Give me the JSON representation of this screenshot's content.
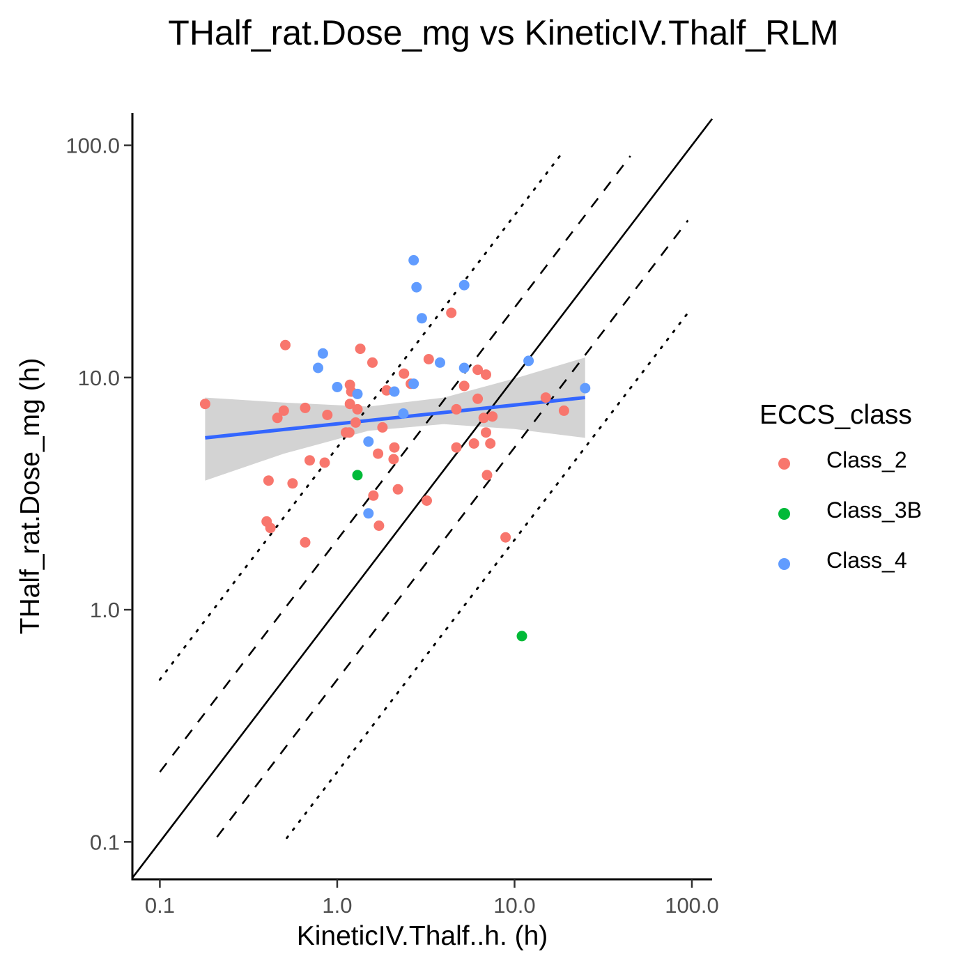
{
  "chart_data": {
    "type": "scatter",
    "title": "THalf_rat.Dose_mg vs KineticIV.Thalf_RLM",
    "xlabel": "KineticIV.Thalf..h. (h)",
    "ylabel": "THalf_rat.Dose_mg (h)",
    "x_scale": "log10",
    "y_scale": "log10",
    "xlim": [
      0.07,
      130
    ],
    "ylim": [
      0.069,
      138
    ],
    "x_ticks": [
      "0.1",
      "1.0",
      "10.0",
      "100.0"
    ],
    "y_ticks": [
      "0.1",
      "1.0",
      "10.0",
      "100.0"
    ],
    "x_tick_values": [
      0.1,
      1,
      10,
      100
    ],
    "y_tick_values": [
      0.1,
      1,
      10,
      100
    ],
    "legend": {
      "title": "ECCS_class",
      "position": "right",
      "entries": [
        {
          "label": "Class_2",
          "color": "#F8766D"
        },
        {
          "label": "Class_3B",
          "color": "#00BA38"
        },
        {
          "label": "Class_4",
          "color": "#619CFF"
        }
      ]
    },
    "reference_lines": [
      {
        "style": "solid",
        "fold": 1,
        "x_range": [
          0.07,
          130
        ]
      },
      {
        "style": "dashed",
        "fold": 2,
        "x_range": [
          0.1,
          45
        ]
      },
      {
        "style": "dashed",
        "fold": 0.5,
        "x_range": [
          0.21,
          95
        ]
      },
      {
        "style": "dotted",
        "fold": 5,
        "x_range": [
          0.1,
          19
        ]
      },
      {
        "style": "dotted",
        "fold": 0.2,
        "x_range": [
          0.52,
          95
        ]
      }
    ],
    "trend": {
      "color": "#3366FF",
      "band_color": "#D3D3D3",
      "points": [
        {
          "x": 0.18,
          "y": 5.5,
          "lo": 3.6,
          "hi": 8.2
        },
        {
          "x": 0.5,
          "y": 6.1,
          "lo": 4.7,
          "hi": 7.8
        },
        {
          "x": 1.5,
          "y": 6.7,
          "lo": 5.9,
          "hi": 7.5
        },
        {
          "x": 4,
          "y": 7.2,
          "lo": 6.3,
          "hi": 8.2
        },
        {
          "x": 10,
          "y": 7.7,
          "lo": 6.0,
          "hi": 9.9
        },
        {
          "x": 25,
          "y": 8.2,
          "lo": 5.5,
          "hi": 12.2
        }
      ]
    },
    "series": [
      {
        "name": "Class_2",
        "color": "#F8766D",
        "points": [
          [
            0.18,
            7.7
          ],
          [
            0.4,
            2.4
          ],
          [
            0.41,
            3.6
          ],
          [
            0.42,
            2.25
          ],
          [
            0.46,
            6.7
          ],
          [
            0.5,
            7.2
          ],
          [
            0.51,
            13.8
          ],
          [
            0.56,
            3.5
          ],
          [
            0.66,
            1.95
          ],
          [
            0.66,
            7.4
          ],
          [
            0.7,
            4.4
          ],
          [
            0.85,
            4.3
          ],
          [
            0.88,
            6.9
          ],
          [
            1.12,
            5.8
          ],
          [
            1.17,
            5.8
          ],
          [
            1.18,
            9.3
          ],
          [
            1.18,
            7.7
          ],
          [
            1.2,
            8.7
          ],
          [
            1.27,
            6.4
          ],
          [
            1.3,
            7.3
          ],
          [
            1.35,
            13.3
          ],
          [
            1.58,
            11.6
          ],
          [
            1.6,
            3.1
          ],
          [
            1.7,
            4.7
          ],
          [
            1.72,
            2.3
          ],
          [
            1.8,
            6.1
          ],
          [
            1.9,
            8.8
          ],
          [
            2.08,
            4.45
          ],
          [
            2.1,
            5.0
          ],
          [
            2.2,
            3.3
          ],
          [
            2.38,
            10.4
          ],
          [
            2.6,
            9.4
          ],
          [
            3.2,
            2.95
          ],
          [
            3.28,
            12.0
          ],
          [
            4.4,
            19.0
          ],
          [
            4.7,
            5.0
          ],
          [
            4.7,
            7.3
          ],
          [
            5.2,
            9.2
          ],
          [
            5.9,
            5.2
          ],
          [
            6.2,
            8.1
          ],
          [
            6.2,
            10.8
          ],
          [
            6.7,
            6.7
          ],
          [
            6.9,
            10.3
          ],
          [
            6.9,
            5.8
          ],
          [
            7.0,
            3.8
          ],
          [
            7.3,
            5.2
          ],
          [
            7.5,
            6.8
          ],
          [
            8.9,
            2.05
          ],
          [
            15.0,
            8.2
          ],
          [
            19.0,
            7.2
          ]
        ]
      },
      {
        "name": "Class_3B",
        "color": "#00BA38",
        "points": [
          [
            1.3,
            3.8
          ],
          [
            11.0,
            0.77
          ]
        ]
      },
      {
        "name": "Class_4",
        "color": "#619CFF",
        "points": [
          [
            0.78,
            11.0
          ],
          [
            0.83,
            12.7
          ],
          [
            1.0,
            9.1
          ],
          [
            1.3,
            8.5
          ],
          [
            1.5,
            2.6
          ],
          [
            1.5,
            5.3
          ],
          [
            2.1,
            8.7
          ],
          [
            2.36,
            7.0
          ],
          [
            2.7,
            9.4
          ],
          [
            2.7,
            32.0
          ],
          [
            2.8,
            24.5
          ],
          [
            3.0,
            18.0
          ],
          [
            3.8,
            11.6
          ],
          [
            5.2,
            11.0
          ],
          [
            5.2,
            25.0
          ],
          [
            12.0,
            11.8
          ],
          [
            25.0,
            9.0
          ]
        ]
      }
    ]
  }
}
